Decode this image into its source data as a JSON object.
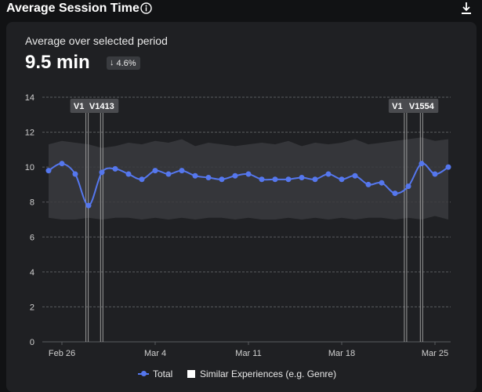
{
  "header": {
    "title": "Average Session Time",
    "info_icon": "info-icon",
    "download_icon": "download-icon"
  },
  "summary": {
    "subtitle": "Average over selected period",
    "value": "9.5 min",
    "delta": "4.6%",
    "delta_direction": "down"
  },
  "chart_data": {
    "type": "line",
    "y_ticks": [
      "0",
      "2",
      "4",
      "6",
      "8",
      "10",
      "12",
      "14"
    ],
    "ylim": [
      0,
      14
    ],
    "x_ticks": [
      {
        "label": "Feb 26",
        "day": 1
      },
      {
        "label": "Mar 4",
        "day": 8
      },
      {
        "label": "Mar 11",
        "day": 15
      },
      {
        "label": "Mar 18",
        "day": 22
      },
      {
        "label": "Mar 25",
        "day": 29
      }
    ],
    "series": [
      {
        "name": "Total",
        "color": "#5577ee",
        "x": [
          0,
          1,
          2,
          3,
          4,
          5,
          6,
          7,
          8,
          9,
          10,
          11,
          12,
          13,
          14,
          15,
          16,
          17,
          18,
          19,
          20,
          21,
          22,
          23,
          24,
          25,
          26,
          27,
          28,
          29,
          30
        ],
        "values": [
          9.8,
          10.2,
          9.6,
          7.8,
          9.7,
          9.9,
          9.6,
          9.3,
          9.8,
          9.6,
          9.8,
          9.5,
          9.4,
          9.3,
          9.5,
          9.6,
          9.3,
          9.3,
          9.3,
          9.4,
          9.3,
          9.6,
          9.3,
          9.5,
          9.0,
          9.1,
          8.5,
          8.9,
          10.2,
          9.6,
          10.0
        ]
      }
    ],
    "similar_band": {
      "name": "Similar Experiences (e.g. Genre)",
      "color": "#3a3b3e",
      "upper": [
        11.3,
        11.5,
        11.4,
        11.3,
        11.1,
        11.2,
        11.4,
        11.3,
        11.5,
        11.4,
        11.6,
        11.2,
        11.4,
        11.3,
        11.2,
        11.3,
        11.4,
        11.3,
        11.5,
        11.2,
        11.4,
        11.3,
        11.4,
        11.6,
        11.3,
        11.4,
        11.5,
        11.6,
        11.7,
        11.5,
        11.6
      ],
      "lower": [
        7.1,
        7.0,
        7.0,
        7.1,
        7.0,
        7.1,
        7.1,
        7.0,
        7.1,
        7.0,
        7.1,
        7.0,
        7.1,
        7.1,
        7.0,
        7.1,
        7.0,
        7.0,
        7.1,
        7.0,
        7.1,
        7.0,
        7.1,
        7.0,
        7.1,
        7.1,
        7.0,
        7.1,
        7.0,
        7.2,
        7.0
      ]
    },
    "version_markers": [
      {
        "label": "V1",
        "day": 2.8
      },
      {
        "label": "V1413",
        "day": 3.9
      },
      {
        "label": "V1",
        "day": 26.7
      },
      {
        "label": "V1554",
        "day": 27.9
      }
    ],
    "grid": true,
    "legend": "bottom"
  },
  "legend": {
    "total_label": "Total",
    "similar_label": "Similar Experiences (e.g. Genre)"
  }
}
